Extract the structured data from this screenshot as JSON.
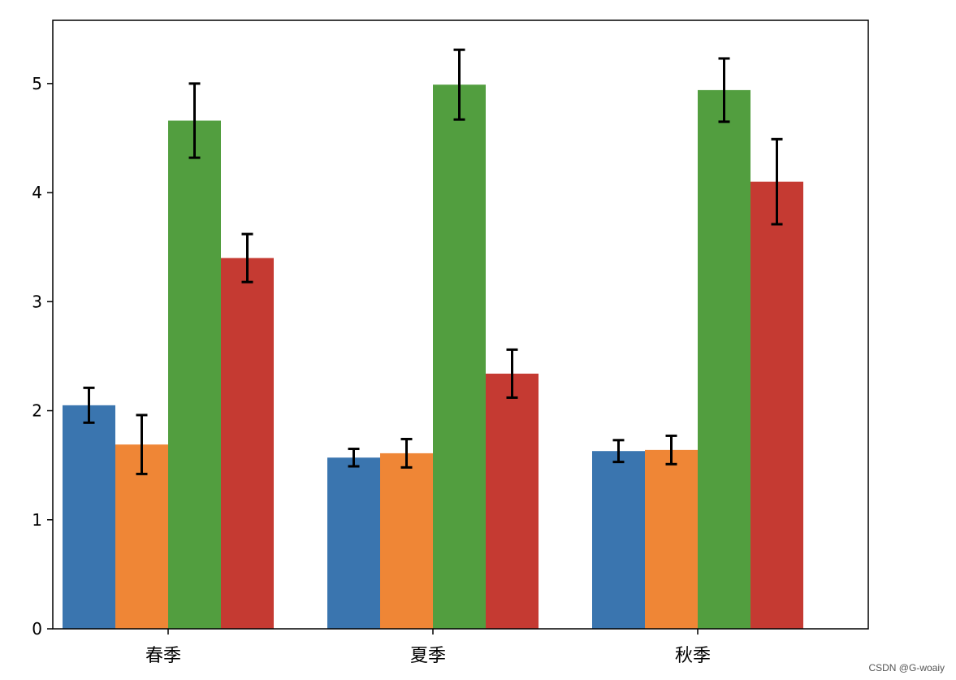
{
  "chart_data": {
    "type": "bar",
    "categories": [
      "春季",
      "夏季",
      "秋季"
    ],
    "series": [
      {
        "color": "#3a75af",
        "values": [
          2.05,
          1.57,
          1.63
        ],
        "errors": [
          0.16,
          0.08,
          0.1
        ]
      },
      {
        "color": "#ef8636",
        "values": [
          1.69,
          1.61,
          1.64
        ],
        "errors": [
          0.27,
          0.13,
          0.13
        ]
      },
      {
        "color": "#529e3f",
        "values": [
          4.66,
          4.99,
          4.94
        ],
        "errors": [
          0.34,
          0.32,
          0.29
        ]
      },
      {
        "color": "#c53a32",
        "values": [
          3.4,
          2.34,
          4.1
        ],
        "errors": [
          0.22,
          0.22,
          0.39
        ]
      }
    ],
    "ylim": [
      0,
      5.58
    ],
    "yticks": [
      "0",
      "1",
      "2",
      "3",
      "4",
      "5"
    ],
    "title": "",
    "xlabel": "",
    "ylabel": "",
    "grid": false
  },
  "watermark": "CSDN @G-woaiy"
}
